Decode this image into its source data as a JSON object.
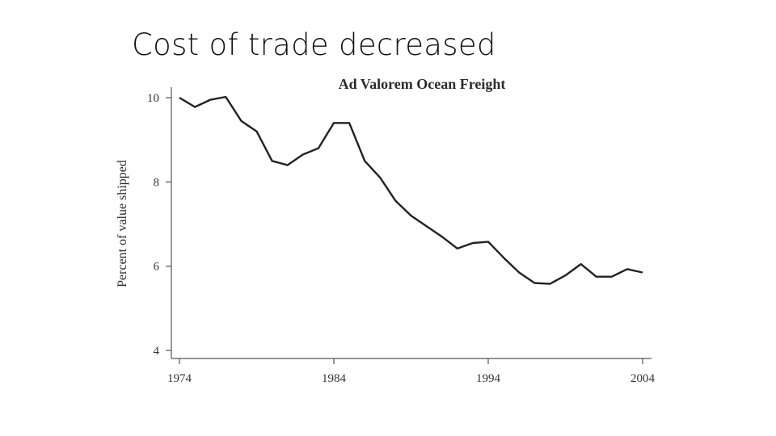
{
  "slide": {
    "title": "Cost of trade decreased"
  },
  "chart_data": {
    "type": "line",
    "title": "Ad Valorem Ocean Freight",
    "xlabel": "",
    "ylabel": "Percent of value shipped",
    "xlim": [
      1974,
      2004
    ],
    "ylim": [
      4,
      10.2
    ],
    "xticks": [
      1974,
      1984,
      1994,
      2004
    ],
    "yticks": [
      4,
      6,
      8,
      10
    ],
    "grid": false,
    "series": [
      {
        "name": "Ad valorem ocean freight",
        "x": [
          1974,
          1975,
          1976,
          1977,
          1978,
          1979,
          1980,
          1981,
          1982,
          1983,
          1984,
          1985,
          1986,
          1987,
          1988,
          1989,
          1990,
          1991,
          1992,
          1993,
          1994,
          1995,
          1996,
          1997,
          1998,
          1999,
          2000,
          2001,
          2002,
          2003,
          2004
        ],
        "values": [
          10.0,
          9.78,
          9.95,
          10.02,
          9.45,
          9.2,
          8.5,
          8.4,
          8.65,
          8.8,
          9.4,
          9.4,
          8.5,
          8.1,
          7.55,
          7.2,
          6.95,
          6.7,
          6.42,
          6.55,
          6.58,
          6.2,
          5.85,
          5.6,
          5.58,
          5.78,
          6.05,
          5.75,
          5.75,
          5.93,
          5.85
        ]
      }
    ]
  }
}
